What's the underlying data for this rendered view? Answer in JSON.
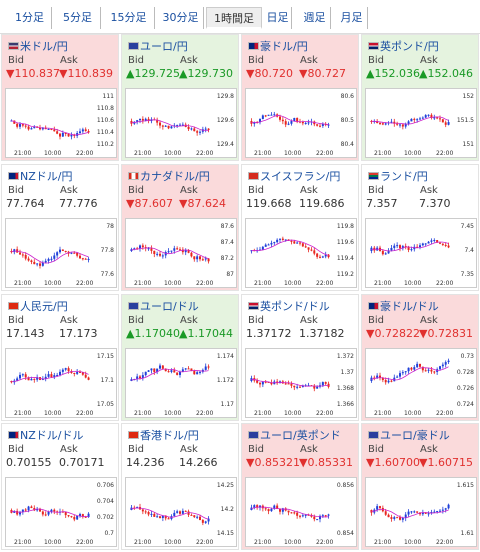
{
  "tabs": [
    "1分足",
    "5分足",
    "15分足",
    "30分足",
    "1時間足",
    "日足",
    "週足",
    "月足"
  ],
  "active_tab": "1時間足",
  "labels": {
    "bid": "Bid",
    "ask": "Ask"
  },
  "colors": {
    "up": "#1a9926",
    "down": "#e0302e",
    "bg_up": "#e5f3df",
    "bg_down": "#fadadb",
    "candle_up": "#1f3fd9",
    "candle_down": "#e8251f",
    "ma": "#cc22cc"
  },
  "x_labels": [
    "21:00",
    "10:00",
    "22:00"
  ],
  "pairs": [
    {
      "name": "米ドル/円",
      "flag": "us-flag-icon",
      "state": "down",
      "bid": "▼110.837",
      "ask": "▼110.839",
      "yticks": [
        "111",
        "110.8",
        "110.6",
        "110.4",
        "110.2"
      ]
    },
    {
      "name": "ユーロ/円",
      "flag": "eu-flag-icon",
      "state": "up",
      "bid": "▲129.725",
      "ask": "▲129.730",
      "yticks": [
        "129.8",
        "129.6",
        "129.4"
      ]
    },
    {
      "name": "豪ドル/円",
      "flag": "au-flag-icon",
      "state": "down",
      "bid": "▼80.720",
      "ask": "▼80.727",
      "yticks": [
        "80.6",
        "80.5",
        "80.4"
      ]
    },
    {
      "name": "英ポンド/円",
      "flag": "gb-flag-icon",
      "state": "up",
      "bid": "▲152.036",
      "ask": "▲152.046",
      "yticks": [
        "152",
        "151.5",
        "151"
      ]
    },
    {
      "name": "NZドル/円",
      "flag": "nz-flag-icon",
      "state": "flat",
      "bid": "77.764",
      "ask": "77.776",
      "yticks": [
        "78",
        "77.8",
        "77.6"
      ]
    },
    {
      "name": "カナダドル/円",
      "flag": "ca-flag-icon",
      "state": "down",
      "bid": "▼87.607",
      "ask": "▼87.624",
      "yticks": [
        "87.6",
        "87.4",
        "87.2",
        "87"
      ]
    },
    {
      "name": "スイスフラン/円",
      "flag": "ch-flag-icon",
      "state": "flat",
      "bid": "119.668",
      "ask": "119.686",
      "yticks": [
        "119.8",
        "119.6",
        "119.4",
        "119.2"
      ]
    },
    {
      "name": "ランド/円",
      "flag": "za-flag-icon",
      "state": "flat",
      "bid": "7.357",
      "ask": "7.370",
      "yticks": [
        "7.45",
        "7.4",
        "7.35"
      ]
    },
    {
      "name": "人民元/円",
      "flag": "cn-flag-icon",
      "state": "flat",
      "bid": "17.143",
      "ask": "17.173",
      "yticks": [
        "17.15",
        "17.1",
        "17.05"
      ]
    },
    {
      "name": "ユーロ/ドル",
      "flag": "eu-flag-icon",
      "state": "up",
      "bid": "▲1.17040",
      "ask": "▲1.17044",
      "yticks": [
        "1.174",
        "1.172",
        "1.17"
      ]
    },
    {
      "name": "英ポンド/ドル",
      "flag": "gb-flag-icon",
      "state": "flat",
      "bid": "1.37172",
      "ask": "1.37182",
      "yticks": [
        "1.372",
        "1.37",
        "1.368",
        "1.366"
      ]
    },
    {
      "name": "豪ドル/ドル",
      "flag": "au-flag-icon",
      "state": "down",
      "bid": "▼0.72822",
      "ask": "▼0.72831",
      "yticks": [
        "0.73",
        "0.728",
        "0.726",
        "0.724"
      ]
    },
    {
      "name": "NZドル/ドル",
      "flag": "nz-flag-icon",
      "state": "flat",
      "bid": "0.70155",
      "ask": "0.70171",
      "yticks": [
        "0.706",
        "0.704",
        "0.702",
        "0.7"
      ]
    },
    {
      "name": "香港ドル/円",
      "flag": "hk-flag-icon",
      "state": "flat",
      "bid": "14.236",
      "ask": "14.266",
      "yticks": [
        "14.25",
        "14.2",
        "14.15"
      ]
    },
    {
      "name": "ユーロ/英ポンド",
      "flag": "eu-flag-icon",
      "state": "down",
      "bid": "▼0.85321",
      "ask": "▼0.85331",
      "yticks": [
        "0.856",
        "0.854"
      ]
    },
    {
      "name": "ユーロ/豪ドル",
      "flag": "eu-flag-icon",
      "state": "down",
      "bid": "▼1.60700",
      "ask": "▼1.60715",
      "yticks": [
        "1.615",
        "1.61"
      ]
    }
  ]
}
